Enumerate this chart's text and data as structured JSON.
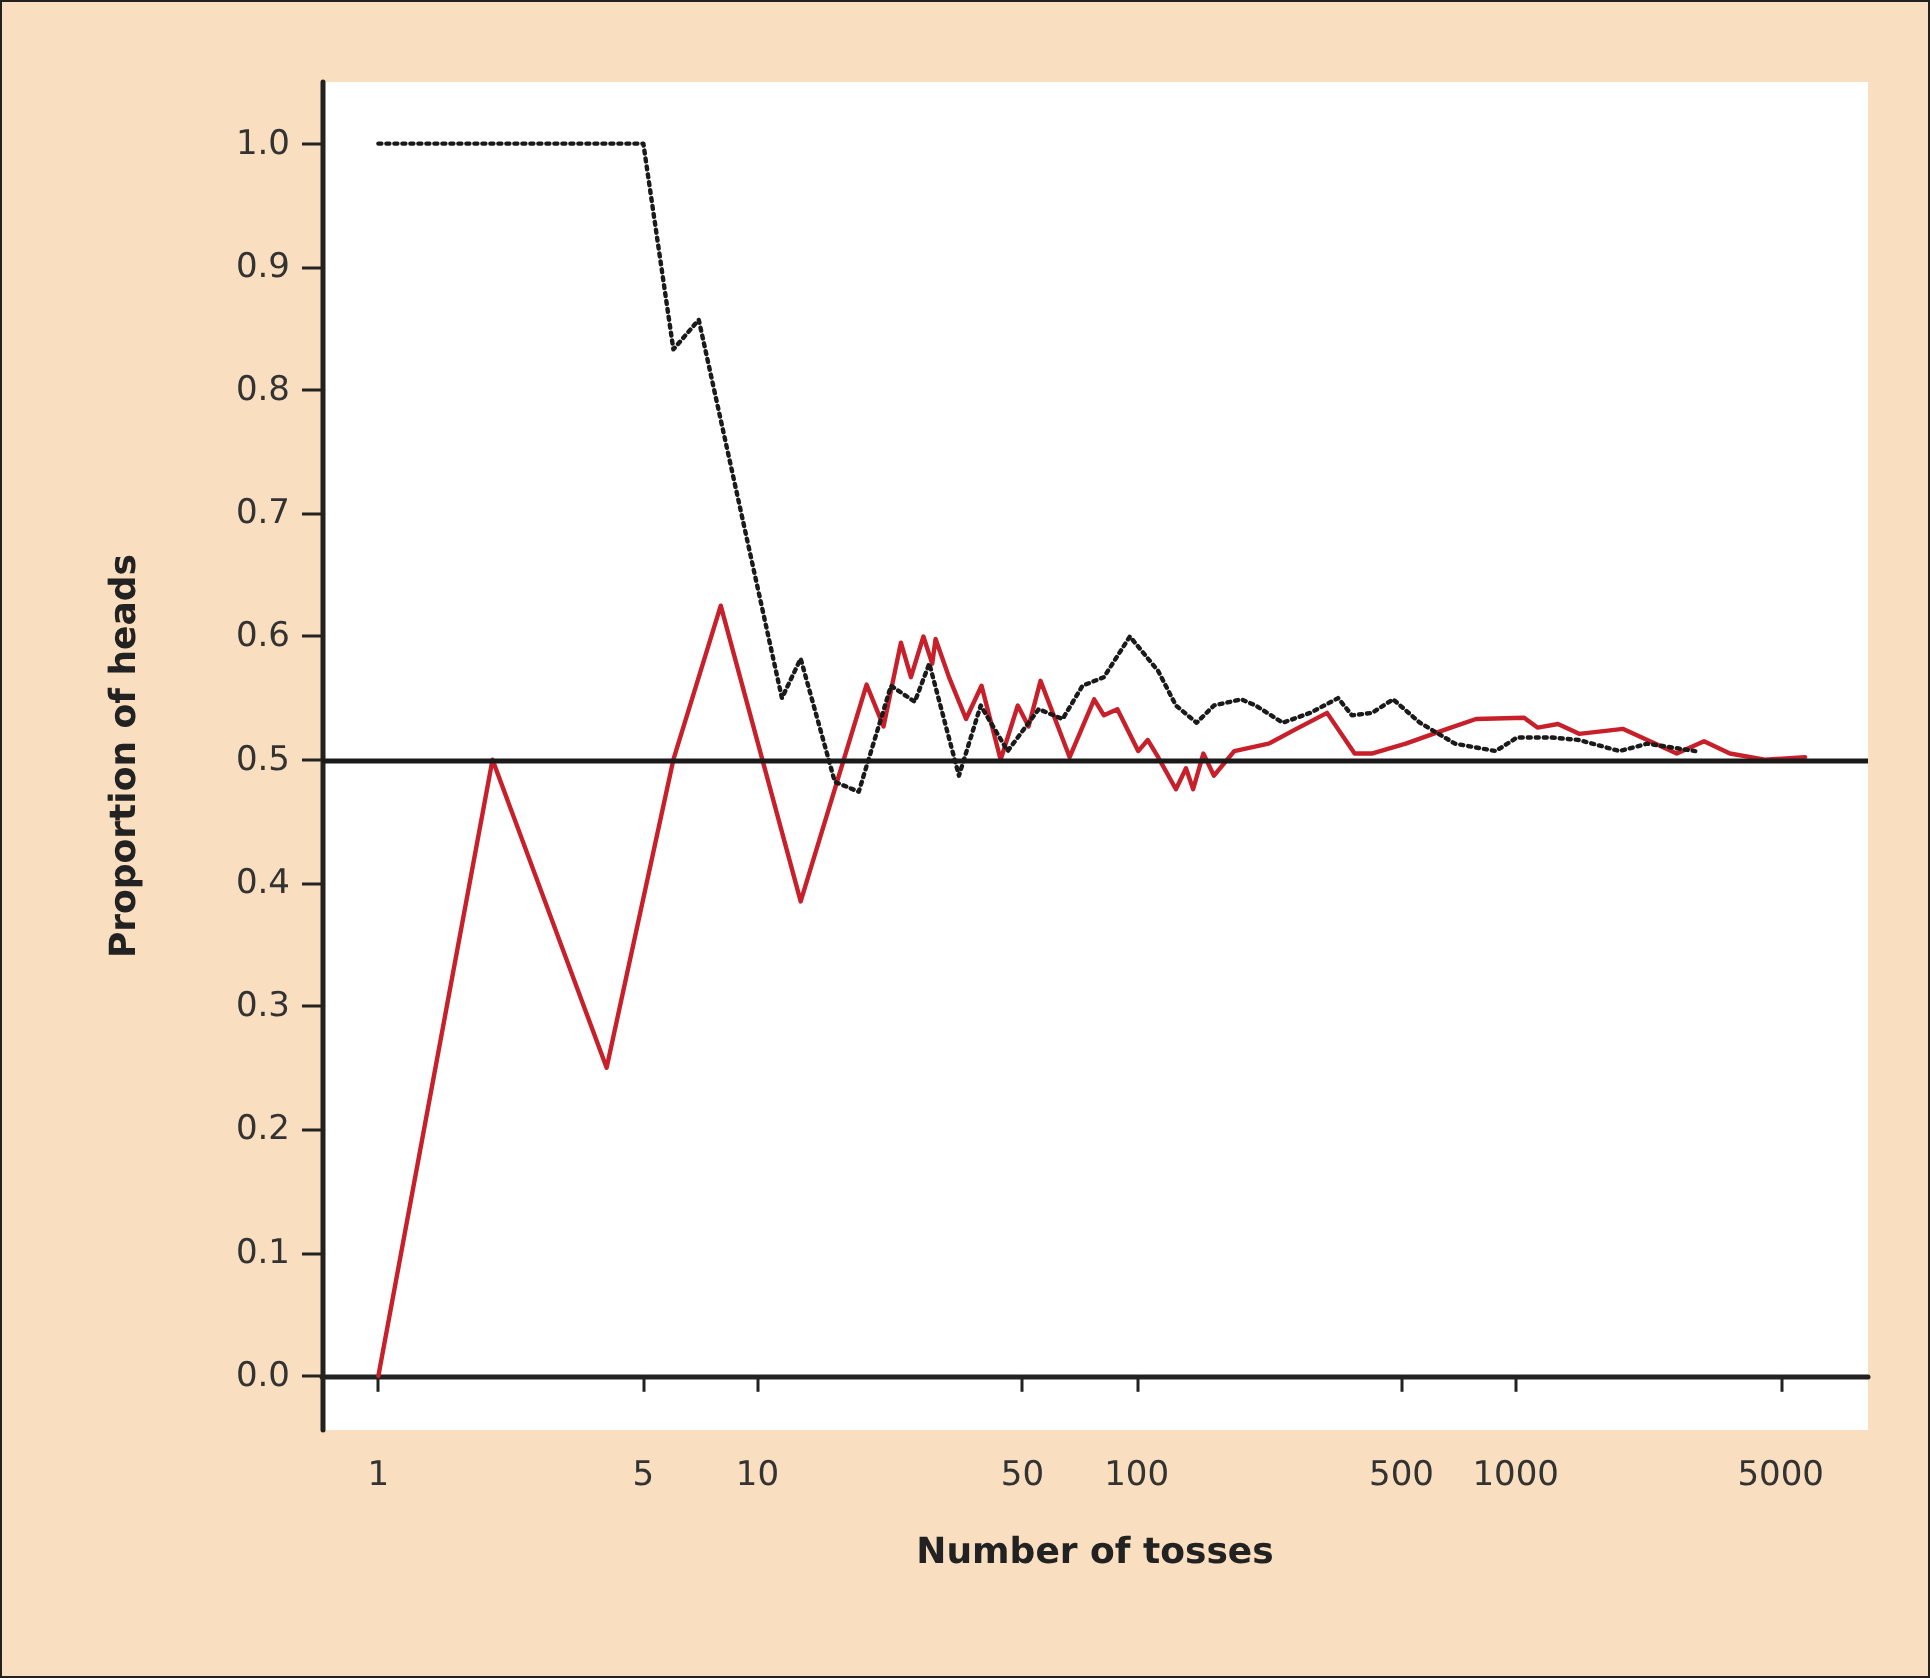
{
  "chart_data": {
    "type": "line",
    "xlabel": "Number of tosses",
    "ylabel": "Proportion of heads",
    "log": "x",
    "xlim": [
      0.71,
      8500
    ],
    "xticks": [
      1,
      5,
      10,
      50,
      100,
      500,
      1000,
      5000
    ],
    "ylim": [
      -0.044,
      1.05
    ],
    "yticks": [
      {
        "value": 0,
        "label": "0.0"
      },
      0.1,
      0.2,
      0.3,
      0.4,
      0.5,
      0.6,
      0.7,
      0.8,
      0.9,
      {
        "value": 1,
        "label": "1.0"
      }
    ],
    "marker": "none",
    "ref_lines": [
      {
        "axis": "y",
        "value": 0.5,
        "color": "#1a1a1a",
        "line_style": "solid"
      }
    ],
    "series": [
      {
        "color": "#c8202a",
        "line_style": "solid",
        "x": [
          1,
          2,
          4,
          6,
          8,
          13,
          19.4,
          21.5,
          23.9,
          25.4,
          27.4,
          28.9,
          29.5,
          32,
          35.5,
          39,
          43.8,
          48.6,
          51.9,
          55.8,
          66.6,
          77.3,
          82,
          89,
          101,
          107,
          114,
          127,
          135,
          141,
          150,
          160,
          181,
          223,
          264,
          318,
          376,
          417,
          513,
          660,
          786,
          1053,
          1144,
          1293,
          1470,
          1922,
          2660,
          3140,
          3674,
          4540,
          5800
        ],
        "values": [
          0,
          0.5,
          0.25,
          0.5,
          0.625,
          0.385,
          0.561,
          0.527,
          0.595,
          0.567,
          0.6,
          0.578,
          0.598,
          0.567,
          0.533,
          0.56,
          0.5,
          0.544,
          0.527,
          0.564,
          0.502,
          0.549,
          0.536,
          0.541,
          0.507,
          0.516,
          0.502,
          0.476,
          0.493,
          0.476,
          0.505,
          0.487,
          0.507,
          0.513,
          0.525,
          0.538,
          0.505,
          0.505,
          0.513,
          0.525,
          0.533,
          0.534,
          0.526,
          0.529,
          0.521,
          0.525,
          0.505,
          0.515,
          0.505,
          0.5,
          0.502
        ]
      },
      {
        "color": "#1a1a1a",
        "line_style": "dotted",
        "x": [
          1,
          2,
          3,
          4,
          5,
          6,
          7,
          11.6,
          13,
          16,
          18.5,
          22.5,
          26,
          28.4,
          34,
          38.8,
          45.7,
          55.2,
          63.8,
          72,
          82,
          96,
          114,
          127,
          144,
          160,
          189,
          206,
          243,
          287,
          340,
          370,
          418,
          475,
          559,
          692,
          886,
          1008,
          1244,
          1469,
          1878,
          2225,
          2976
        ],
        "values": [
          1,
          1,
          1,
          1,
          1,
          0.833,
          0.857,
          0.55,
          0.582,
          0.482,
          0.474,
          0.56,
          0.547,
          0.578,
          0.487,
          0.544,
          0.507,
          0.541,
          0.533,
          0.56,
          0.567,
          0.6,
          0.572,
          0.544,
          0.53,
          0.544,
          0.549,
          0.544,
          0.53,
          0.538,
          0.55,
          0.536,
          0.538,
          0.549,
          0.53,
          0.513,
          0.507,
          0.518,
          0.518,
          0.516,
          0.507,
          0.513,
          0.507
        ]
      }
    ]
  }
}
